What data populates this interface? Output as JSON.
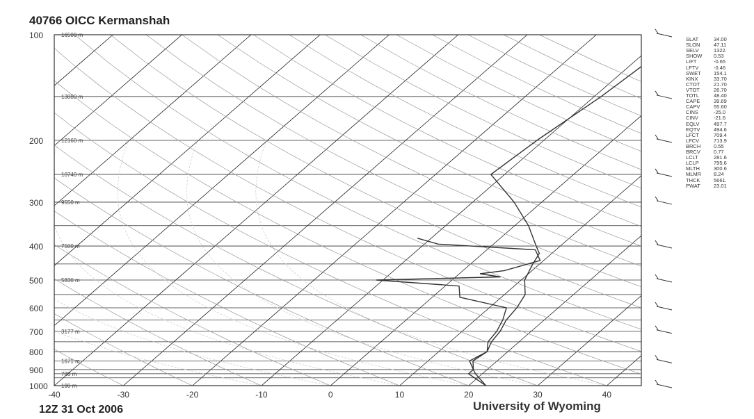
{
  "chart_data": {
    "type": "line",
    "title": "40766 OICC Kermanshah",
    "date": "12Z 31 Oct 2006",
    "source": "University of Wyoming",
    "y_axis": {
      "scale": "log-pressure",
      "reversed": true,
      "ticks": [
        "100",
        "200",
        "300",
        "400",
        "500",
        "600",
        "700",
        "800",
        "900",
        "1000"
      ],
      "height_labels": [
        {
          "p": 100,
          "label": "16500 m"
        },
        {
          "p": 150,
          "label": "13880 m"
        },
        {
          "p": 200,
          "label": "12160 m"
        },
        {
          "p": 250,
          "label": "10740 m"
        },
        {
          "p": 300,
          "label": "9550 m"
        },
        {
          "p": 400,
          "label": "7500 m"
        },
        {
          "p": 500,
          "label": "5830 m"
        },
        {
          "p": 700,
          "label": "3177 m"
        },
        {
          "p": 850,
          "label": "1671 m"
        },
        {
          "p": 925,
          "label": "788 m"
        },
        {
          "p": 1000,
          "label": "190 m"
        }
      ]
    },
    "x_axis": {
      "label": "",
      "range": [
        -40,
        45
      ],
      "ticks": [
        "-40",
        "-30",
        "-20",
        "-10",
        "0",
        "10",
        "20",
        "30",
        "40"
      ],
      "skewed_isotherms": true
    },
    "grid": true,
    "series": [
      {
        "color": "#333333",
        "points": [
          [
            1000,
            22.5
          ],
          [
            925,
            19
          ],
          [
            900,
            18
          ],
          [
            850,
            16.5
          ],
          [
            800,
            17
          ],
          [
            750,
            16
          ],
          [
            700,
            15.5
          ],
          [
            650,
            14.5
          ],
          [
            600,
            14
          ],
          [
            550,
            13
          ],
          [
            500,
            10.5
          ],
          [
            450,
            9
          ],
          [
            420,
            8.2
          ],
          [
            400,
            6.5
          ],
          [
            350,
            2
          ],
          [
            300,
            -4
          ],
          [
            250,
            -12
          ],
          [
            200,
            -11
          ],
          [
            150,
            -9
          ],
          [
            118,
            -8
          ],
          [
            100,
            -1
          ]
        ]
      },
      {
        "color": "#333333",
        "points": [
          [
            1000,
            22.5
          ],
          [
            925,
            18
          ],
          [
            900,
            18
          ],
          [
            850,
            16
          ],
          [
            800,
            17
          ],
          [
            750,
            15.5
          ],
          [
            700,
            15
          ],
          [
            650,
            14
          ],
          [
            600,
            12.5
          ],
          [
            560,
            4
          ],
          [
            520,
            2
          ],
          [
            500,
            -11
          ],
          [
            490,
            6.5
          ],
          [
            480,
            3
          ],
          [
            470,
            6
          ],
          [
            440,
            9.5
          ],
          [
            410,
            7
          ],
          [
            395,
            -8
          ],
          [
            380,
            -12
          ]
        ]
      }
    ],
    "wind_barbs": {
      "levels": [
        "100",
        "150",
        "200",
        "250",
        "300",
        "400",
        "500",
        "600",
        "700",
        "850",
        "1000"
      ],
      "description": "wind barbs column at right"
    },
    "indices": [
      {
        "name": "SLAT",
        "value": "34.00"
      },
      {
        "name": "SLON",
        "value": "47.11"
      },
      {
        "name": "SELV",
        "value": "1322."
      },
      {
        "name": "SHOW",
        "value": "0.53"
      },
      {
        "name": "LIFT",
        "value": "-0.65"
      },
      {
        "name": "LFTV",
        "value": "-0.46"
      },
      {
        "name": "SWET",
        "value": "154.1"
      },
      {
        "name": "KINX",
        "value": "33.70"
      },
      {
        "name": "CTOT",
        "value": "21.70"
      },
      {
        "name": "VTOT",
        "value": "26.70"
      },
      {
        "name": "TOTL",
        "value": "48.40"
      },
      {
        "name": "CAPE",
        "value": "39.69"
      },
      {
        "name": "CAPV",
        "value": "55.60"
      },
      {
        "name": "CINS",
        "value": "-25.0"
      },
      {
        "name": "CINV",
        "value": "-21.6"
      },
      {
        "name": "EQLV",
        "value": "497.7"
      },
      {
        "name": "EQTV",
        "value": "494.6"
      },
      {
        "name": "LFCT",
        "value": "709.4"
      },
      {
        "name": "LFCV",
        "value": "713.9"
      },
      {
        "name": "BRCH",
        "value": "0.55"
      },
      {
        "name": "BRCV",
        "value": "0.77"
      },
      {
        "name": "LCLT",
        "value": "281.6"
      },
      {
        "name": "LCLP",
        "value": "795.6"
      },
      {
        "name": "MLTH",
        "value": "300.6"
      },
      {
        "name": "MLMR",
        "value": "8.24"
      },
      {
        "name": "THCK",
        "value": "5661."
      },
      {
        "name": "PWAT",
        "value": "23.01"
      }
    ],
    "colors": {
      "grid_line": "#bbbbbb",
      "isobar": "#333333",
      "isotherm": "#222222",
      "adiabat": "#999999",
      "data_line": "#333333"
    }
  }
}
